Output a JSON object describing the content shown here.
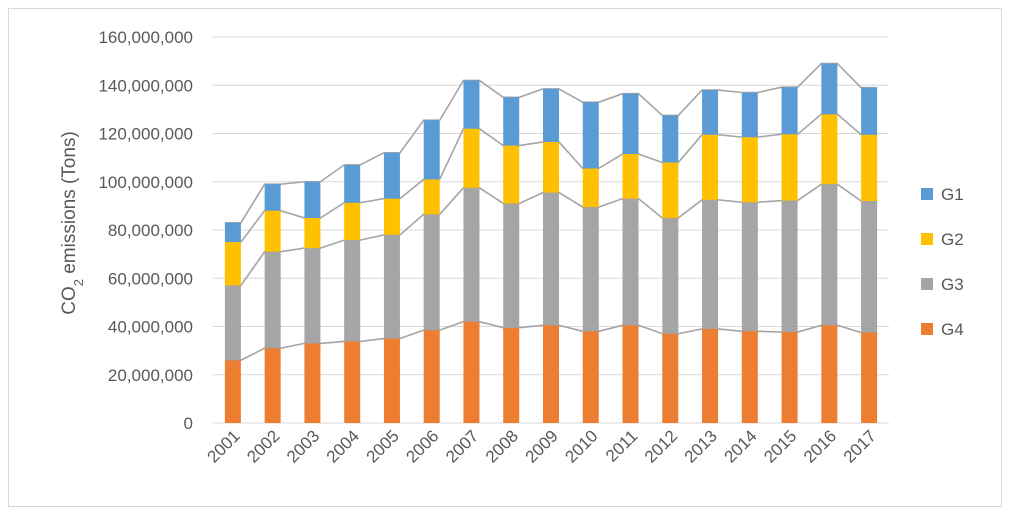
{
  "chart_data": {
    "type": "stacked-bar",
    "title": "",
    "xlabel": "",
    "ylabel": {
      "prefix": "CO",
      "subscript": "2",
      "suffix": " emissions (Tons)"
    },
    "ylim": [
      0,
      160000000
    ],
    "yticks": [
      "0",
      "20,000,000",
      "40,000,000",
      "60,000,000",
      "80,000,000",
      "100,000,000",
      "120,000,000",
      "140,000,000",
      "160,000,000"
    ],
    "ytick_values": [
      0,
      20000000,
      40000000,
      60000000,
      80000000,
      100000000,
      120000000,
      140000000,
      160000000
    ],
    "categories": [
      "2001",
      "2002",
      "2003",
      "2004",
      "2005",
      "2006",
      "2007",
      "2008",
      "2009",
      "2010",
      "2011",
      "2012",
      "2013",
      "2014",
      "2015",
      "2016",
      "2017"
    ],
    "grid": true,
    "legend_position": "right",
    "series_lines": true,
    "series": [
      {
        "name": "G4",
        "color": "#ed7d31",
        "values": [
          26000000,
          31000000,
          33000000,
          33800000,
          35000000,
          38500000,
          42000000,
          39500000,
          40500000,
          38000000,
          40500000,
          37000000,
          39000000,
          38000000,
          37700000,
          40500000,
          37500000
        ]
      },
      {
        "name": "G3",
        "color": "#a5a5a5",
        "values": [
          31000000,
          40000000,
          39500000,
          42000000,
          43000000,
          48000000,
          55500000,
          51500000,
          55000000,
          51500000,
          52500000,
          48000000,
          53500000,
          53500000,
          54500000,
          58500000,
          54500000
        ]
      },
      {
        "name": "G2",
        "color": "#ffc000",
        "values": [
          18000000,
          17000000,
          12500000,
          15500000,
          15000000,
          14500000,
          24500000,
          24000000,
          21000000,
          16000000,
          18500000,
          23000000,
          27000000,
          27000000,
          27500000,
          29000000,
          27500000
        ]
      },
      {
        "name": "G1",
        "color": "#5b9bd5",
        "values": [
          8000000,
          11000000,
          15000000,
          15700000,
          19000000,
          24500000,
          20000000,
          20000000,
          22000000,
          27500000,
          25000000,
          19500000,
          18500000,
          18500000,
          19500000,
          21000000,
          19500000
        ]
      }
    ],
    "legend_order": [
      "G1",
      "G2",
      "G3",
      "G4"
    ],
    "gridline_color": "#d9d9d9",
    "connector_color": "#a5a5a5",
    "text_color": "#595959"
  }
}
